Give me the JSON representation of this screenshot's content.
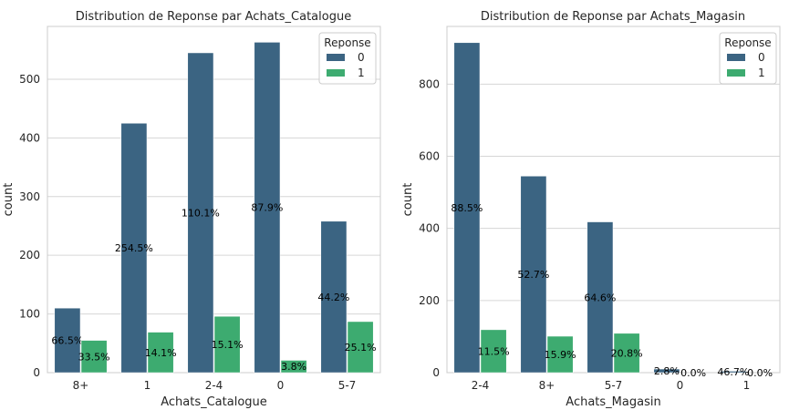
{
  "colors": {
    "series0": "#3b6482",
    "series1": "#3dab70",
    "grid": "#d6d6d6",
    "frame": "#cccccc",
    "text": "#262626"
  },
  "chart_data": [
    {
      "type": "bar",
      "title": "Distribution de Reponse par Achats_Catalogue",
      "xlabel": "Achats_Catalogue",
      "ylabel": "count",
      "categories": [
        "8+",
        "1",
        "2-4",
        "0",
        "5-7"
      ],
      "ylim": [
        0,
        590
      ],
      "yticks": [
        "0",
        "100",
        "200",
        "300",
        "400",
        "500"
      ],
      "grid": true,
      "legend": {
        "title": "Reponse",
        "placement": "top-right"
      },
      "series": [
        {
          "name": "0",
          "values": [
            110,
            425,
            545,
            563,
            258
          ],
          "labels": [
            "66.5%",
            "254.5%",
            "110.1%",
            "87.9%",
            "44.2%"
          ]
        },
        {
          "name": "1",
          "values": [
            55,
            69,
            96,
            21,
            87
          ],
          "labels": [
            "33.5%",
            "14.1%",
            "15.1%",
            "3.8%",
            "25.1%"
          ]
        }
      ]
    },
    {
      "type": "bar",
      "title": "Distribution de Reponse par Achats_Magasin",
      "xlabel": "Achats_Magasin",
      "ylabel": "count",
      "categories": [
        "2-4",
        "8+",
        "5-7",
        "0",
        "1"
      ],
      "ylim": [
        0,
        960
      ],
      "yticks": [
        "0",
        "200",
        "400",
        "600",
        "800"
      ],
      "grid": true,
      "legend": {
        "title": "Reponse",
        "placement": "top-right"
      },
      "series": [
        {
          "name": "0",
          "values": [
            915,
            545,
            418,
            10,
            4
          ],
          "labels": [
            "88.5%",
            "52.7%",
            "64.6%",
            "2.8%",
            "46.7%"
          ]
        },
        {
          "name": "1",
          "values": [
            119,
            101,
            109,
            0,
            0
          ],
          "labels": [
            "11.5%",
            "15.9%",
            "20.8%",
            "0.0%",
            "0.0%"
          ]
        }
      ]
    }
  ]
}
